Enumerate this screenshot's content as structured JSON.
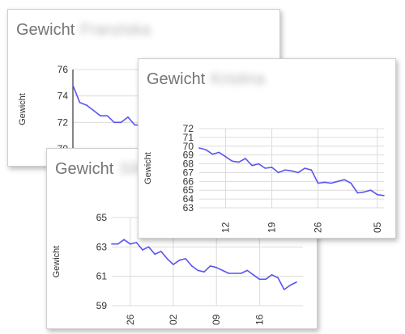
{
  "colors": {
    "line": "#5a55f0",
    "grid": "#dcdcdc",
    "axis": "#333333",
    "title": "#757575"
  },
  "cards": {
    "franziska": {
      "title": "Gewicht",
      "person": "Franziska"
    },
    "kristina": {
      "title": "Gewicht",
      "person": "Kristina"
    },
    "silvia": {
      "title": "Gewicht",
      "person": "Silvia"
    }
  },
  "chart_data": [
    {
      "id": "franziska",
      "type": "line",
      "title": "Gewicht Franziska",
      "ylabel": "Gewicht",
      "ylim": [
        70,
        76
      ],
      "yticks": [
        70,
        72,
        74,
        76
      ],
      "grid": true,
      "xlabels": [],
      "series": [
        {
          "values": [
            74.8,
            73.5,
            73.3,
            72.9,
            72.5,
            72.5,
            72.0,
            72.0,
            72.4,
            71.8,
            71.8,
            71.6,
            71.5
          ]
        }
      ]
    },
    {
      "id": "kristina",
      "type": "line",
      "title": "Gewicht Kristina",
      "ylabel": "Gewicht",
      "ylim": [
        63,
        72
      ],
      "yticks": [
        63,
        64,
        65,
        66,
        67,
        68,
        69,
        70,
        71,
        72
      ],
      "grid": true,
      "xlabels": [
        {
          "label": "12",
          "index": 4
        },
        {
          "label": "19",
          "index": 11
        },
        {
          "label": "26",
          "index": 18
        },
        {
          "label": "05",
          "index": 27
        }
      ],
      "series": [
        {
          "values": [
            69.8,
            69.6,
            69.1,
            69.3,
            68.8,
            68.3,
            68.2,
            68.6,
            67.8,
            68.0,
            67.5,
            67.6,
            67.0,
            67.3,
            67.2,
            67.0,
            67.5,
            67.3,
            65.8,
            65.9,
            65.8,
            66.0,
            66.2,
            65.8,
            64.7,
            64.8,
            65.0,
            64.5,
            64.4
          ]
        }
      ]
    },
    {
      "id": "silvia",
      "type": "line",
      "title": "Gewicht Silvia",
      "ylabel": "Gewicht",
      "ylim": [
        59,
        65
      ],
      "yticks": [
        59,
        61,
        63,
        65
      ],
      "grid": true,
      "xlabels": [
        {
          "label": "26",
          "index": 3
        },
        {
          "label": "02",
          "index": 10
        },
        {
          "label": "09",
          "index": 17
        },
        {
          "label": "16",
          "index": 24
        }
      ],
      "series": [
        {
          "values": [
            63.2,
            63.2,
            63.5,
            63.2,
            63.3,
            62.8,
            63.0,
            62.5,
            62.7,
            62.2,
            61.8,
            62.1,
            62.2,
            61.7,
            61.4,
            61.3,
            61.7,
            61.6,
            61.4,
            61.2,
            61.2,
            61.2,
            61.4,
            61.1,
            60.8,
            60.8,
            61.1,
            60.9,
            60.1,
            60.4,
            60.6
          ]
        }
      ]
    }
  ]
}
